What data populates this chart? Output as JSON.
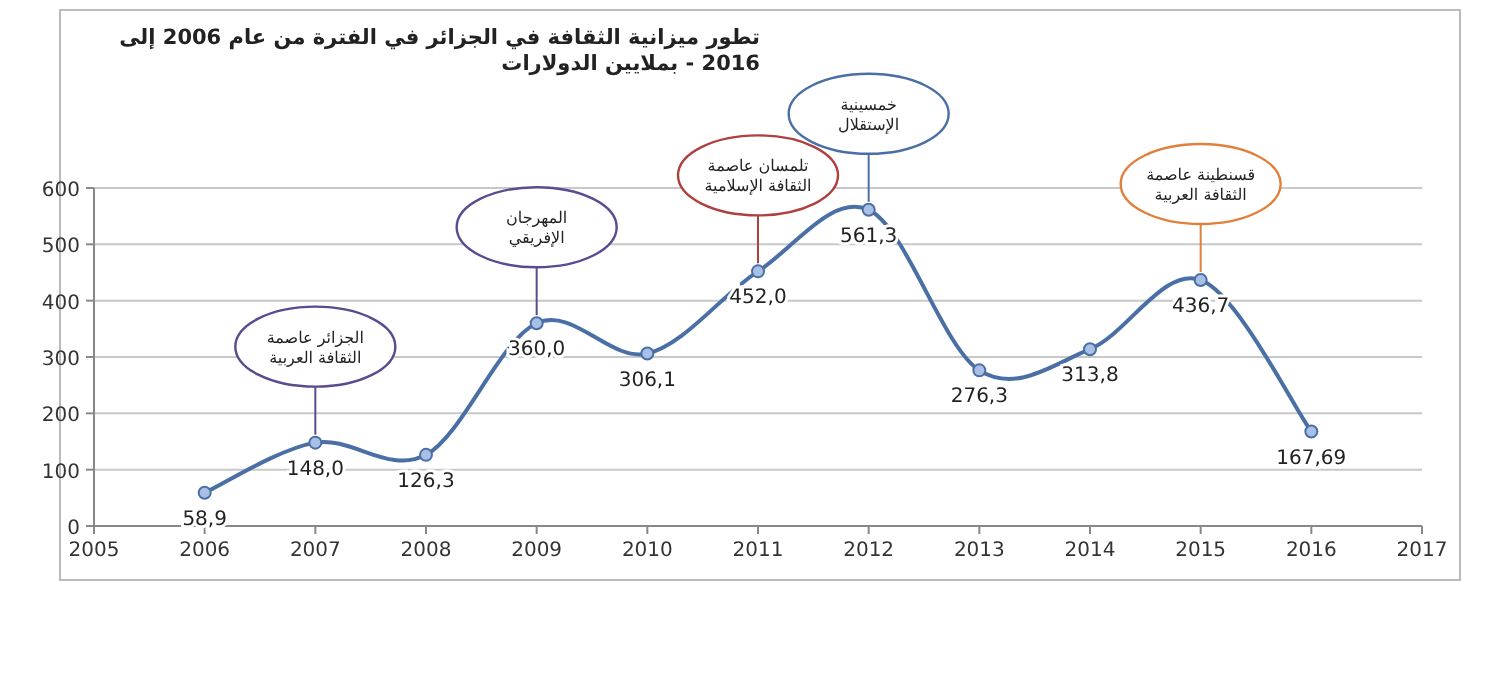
{
  "chart_data": {
    "type": "line",
    "title": "تطور ميزانية الثقافة في الجزائر في الفترة من عام 2006 إلى 2016 - بملايين الدولارات",
    "x": [
      2006,
      2007,
      2008,
      2009,
      2010,
      2011,
      2012,
      2013,
      2014,
      2015,
      2016
    ],
    "series": [
      {
        "color": "#4a6fa5",
        "values": [
          58.9,
          148.0,
          126.3,
          360.0,
          306.1,
          452.0,
          561.3,
          276.3,
          313.8,
          436.7,
          167.69
        ],
        "value_labels": [
          "58,9",
          "148,0",
          "126,3",
          "360,0",
          "306,1",
          "452,0",
          "561,3",
          "276,3",
          "313,8",
          "436,7",
          "167,69"
        ]
      }
    ],
    "xlim": [
      2005,
      2017
    ],
    "xticks": [
      2005,
      2006,
      2007,
      2008,
      2009,
      2010,
      2011,
      2012,
      2013,
      2014,
      2015,
      2016,
      2017
    ],
    "ylim": [
      0,
      600
    ],
    "yticks": [
      0,
      100,
      200,
      300,
      400,
      500,
      600
    ],
    "grid": "y",
    "marker": "circle",
    "line_style": "solid",
    "annotations": [
      {
        "text": "الجزائر عاصمة الثقافة العربية",
        "x": 2007,
        "y": 148.0
      },
      {
        "text": "المهرجان الإفريقي",
        "x": 2009,
        "y": 360.0
      },
      {
        "text": "تلمسان عاصمة الثقافة الإسلامية",
        "x": 2011,
        "y": 452.0
      },
      {
        "text": "خمسينية الإستقلال",
        "x": 2012,
        "y": 561.3
      },
      {
        "text": "قسنطينة عاصمة الثقافة العربية",
        "x": 2015,
        "y": 436.7
      }
    ]
  }
}
